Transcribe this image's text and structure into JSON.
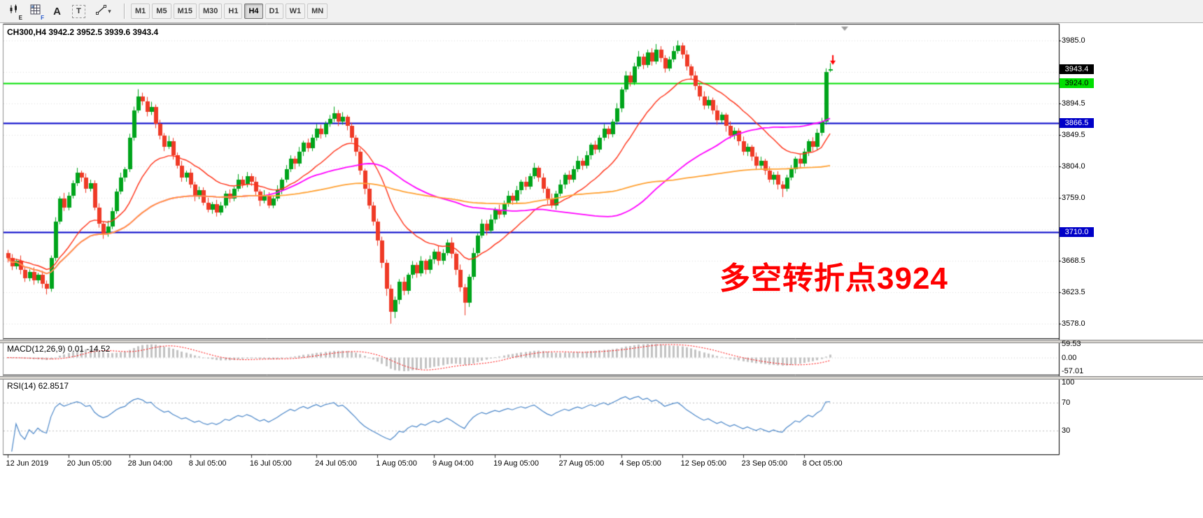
{
  "toolbar": {
    "icons": [
      {
        "name": "candlestick-chart-icon",
        "badge": "E"
      },
      {
        "name": "indicator-grid-icon",
        "badge": "F"
      },
      {
        "name": "text-tool-icon",
        "glyph": "A"
      },
      {
        "name": "textbox-tool-icon",
        "glyph": "T"
      },
      {
        "name": "draw-tool-icon",
        "caret": "▾"
      }
    ],
    "timeframes": [
      {
        "label": "M1",
        "active": false
      },
      {
        "label": "M5",
        "active": false
      },
      {
        "label": "M15",
        "active": false
      },
      {
        "label": "M30",
        "active": false
      },
      {
        "label": "H1",
        "active": false
      },
      {
        "label": "H4",
        "active": true
      },
      {
        "label": "D1",
        "active": false
      },
      {
        "label": "W1",
        "active": false
      },
      {
        "label": "MN",
        "active": false
      }
    ]
  },
  "chart": {
    "header": "CH300,H4  3942.2 3952.5 3939.6 3943.4",
    "annotation": {
      "text": "多空转折点3924",
      "color": "#FF0000"
    },
    "badges": [
      {
        "text": "3943.4",
        "price": 3943.4,
        "bg": "#000000",
        "fg": "#FFFFFF",
        "role": "current-price"
      },
      {
        "text": "3924.0",
        "price": 3924.0,
        "bg": "#00DF00",
        "fg": "#000000",
        "role": "hline-label"
      },
      {
        "text": "3866.5",
        "price": 3866.5,
        "bg": "#0000C8",
        "fg": "#FFFFFF",
        "role": "hline-label"
      },
      {
        "text": "3710.0",
        "price": 3710.0,
        "bg": "#0000C8",
        "fg": "#FFFFFF",
        "role": "hline-label"
      }
    ]
  },
  "chart_data": {
    "type": "candlestick",
    "symbol": "CH300",
    "timeframe": "H4",
    "current_bar": {
      "open": 3942.2,
      "high": 3952.5,
      "low": 3939.6,
      "close": 3943.4
    },
    "y_axis": {
      "min": 3578.0,
      "max": 3985.0,
      "ticks": [
        {
          "value": 3985.0,
          "label": "3985.0"
        },
        {
          "value": 3940.0,
          "label": ""
        },
        {
          "value": 3894.5,
          "label": "3894.5"
        },
        {
          "value": 3849.5,
          "label": "3849.5"
        },
        {
          "value": 3804.0,
          "label": "3804.0"
        },
        {
          "value": 3759.0,
          "label": "3759.0"
        },
        {
          "value": 3713.5,
          "label": ""
        },
        {
          "value": 3668.5,
          "label": "3668.5"
        },
        {
          "value": 3623.5,
          "label": "3623.5"
        },
        {
          "value": 3578.0,
          "label": "3578.0"
        }
      ]
    },
    "x_axis": {
      "labels": [
        {
          "bar": 0,
          "text": "12 Jun 2019"
        },
        {
          "bar": 14,
          "text": "20 Jun 05:00"
        },
        {
          "bar": 28,
          "text": "28 Jun 04:00"
        },
        {
          "bar": 42,
          "text": "8 Jul 05:00"
        },
        {
          "bar": 56,
          "text": "16 Jul 05:00"
        },
        {
          "bar": 71,
          "text": "24 Jul 05:00"
        },
        {
          "bar": 85,
          "text": "1 Aug 05:00"
        },
        {
          "bar": 98,
          "text": "9 Aug 04:00"
        },
        {
          "bar": 112,
          "text": "19 Aug 05:00"
        },
        {
          "bar": 127,
          "text": "27 Aug 05:00"
        },
        {
          "bar": 141,
          "text": "4 Sep 05:00"
        },
        {
          "bar": 155,
          "text": "12 Sep 05:00"
        },
        {
          "bar": 169,
          "text": "23 Sep 05:00"
        },
        {
          "bar": 183,
          "text": "8 Oct 05:00"
        }
      ]
    },
    "hlines": [
      {
        "price": 3924.0,
        "color": "#00DF00",
        "width": 2,
        "label": "3924.0"
      },
      {
        "price": 3866.5,
        "color": "#0000C8",
        "width": 2,
        "label": "3866.5"
      },
      {
        "price": 3710.0,
        "color": "#0000C8",
        "width": 2,
        "label": "3710.0"
      }
    ],
    "ma_lines": [
      {
        "period": 20,
        "type": "ema",
        "color": "#FF3016",
        "width": 1.4
      },
      {
        "period": 60,
        "type": "sma",
        "color": "#FF00FF",
        "width": 1.8
      },
      {
        "period": 120,
        "type": "sma",
        "color": "#FFA133",
        "width": 1.8
      }
    ],
    "colors": {
      "up": "#00A41B",
      "down": "#EF3A26",
      "macd_bar": "#C2C2C2",
      "macd_signal": "#FF0000",
      "rsi_line": "#4A86C8",
      "grid": "#DEDEDE"
    },
    "marker": {
      "bar": 189,
      "price": 3952,
      "color": "#FF0000",
      "type": "arrow-down"
    },
    "indicators": {
      "macd": {
        "label": "MACD(12,26,9) 0.01 -14.52",
        "fast": 12,
        "slow": 26,
        "signal": 9,
        "ticks": [
          {
            "value": 59.53,
            "label": "59.53"
          },
          {
            "value": 0,
            "label": "0.00"
          },
          {
            "value": -57.01,
            "label": "-57.01"
          }
        ]
      },
      "rsi": {
        "label": "RSI(14) 62.8517",
        "period": 14,
        "levels": [
          70,
          30
        ],
        "ticks": [
          {
            "value": 100,
            "label": "100"
          },
          {
            "value": 70,
            "label": "70"
          },
          {
            "value": 30,
            "label": "30"
          }
        ]
      }
    },
    "candles": [
      [
        3680,
        3684,
        3666,
        3672
      ],
      [
        3672,
        3678,
        3655,
        3660
      ],
      [
        3660,
        3671,
        3656,
        3668
      ],
      [
        3668,
        3676,
        3649,
        3655
      ],
      [
        3655,
        3660,
        3638,
        3643
      ],
      [
        3643,
        3656,
        3639,
        3652
      ],
      [
        3652,
        3659,
        3634,
        3640
      ],
      [
        3640,
        3651,
        3636,
        3648
      ],
      [
        3648,
        3654,
        3629,
        3635
      ],
      [
        3635,
        3640,
        3620,
        3628
      ],
      [
        3628,
        3676,
        3624,
        3672
      ],
      [
        3672,
        3731,
        3668,
        3725
      ],
      [
        3725,
        3761,
        3721,
        3758
      ],
      [
        3758,
        3766,
        3740,
        3745
      ],
      [
        3745,
        3767,
        3741,
        3762
      ],
      [
        3762,
        3784,
        3758,
        3780
      ],
      [
        3780,
        3802,
        3776,
        3795
      ],
      [
        3795,
        3798,
        3782,
        3788
      ],
      [
        3788,
        3794,
        3766,
        3772
      ],
      [
        3772,
        3785,
        3768,
        3780
      ],
      [
        3780,
        3784,
        3741,
        3745
      ],
      [
        3745,
        3751,
        3716,
        3722
      ],
      [
        3722,
        3725,
        3700,
        3708
      ],
      [
        3708,
        3726,
        3703,
        3718
      ],
      [
        3718,
        3745,
        3714,
        3740
      ],
      [
        3740,
        3772,
        3736,
        3768
      ],
      [
        3768,
        3795,
        3764,
        3788
      ],
      [
        3788,
        3803,
        3782,
        3800
      ],
      [
        3800,
        3851,
        3796,
        3845
      ],
      [
        3845,
        3890,
        3841,
        3885
      ],
      [
        3885,
        3915,
        3881,
        3905
      ],
      [
        3905,
        3910,
        3892,
        3898
      ],
      [
        3898,
        3904,
        3876,
        3882
      ],
      [
        3882,
        3897,
        3878,
        3890
      ],
      [
        3890,
        3893,
        3859,
        3865
      ],
      [
        3865,
        3871,
        3843,
        3848
      ],
      [
        3848,
        3852,
        3826,
        3832
      ],
      [
        3832,
        3848,
        3829,
        3840
      ],
      [
        3840,
        3845,
        3814,
        3820
      ],
      [
        3820,
        3824,
        3801,
        3805
      ],
      [
        3805,
        3812,
        3782,
        3788
      ],
      [
        3788,
        3798,
        3782,
        3795
      ],
      [
        3795,
        3801,
        3773,
        3778
      ],
      [
        3778,
        3782,
        3754,
        3762
      ],
      [
        3762,
        3775,
        3757,
        3770
      ],
      [
        3770,
        3774,
        3748,
        3752
      ],
      [
        3752,
        3759,
        3738,
        3742
      ],
      [
        3742,
        3753,
        3736,
        3750
      ],
      [
        3750,
        3756,
        3732,
        3738
      ],
      [
        3738,
        3753,
        3734,
        3748
      ],
      [
        3748,
        3769,
        3744,
        3765
      ],
      [
        3765,
        3771,
        3752,
        3758
      ],
      [
        3758,
        3775,
        3754,
        3772
      ],
      [
        3772,
        3793,
        3768,
        3785
      ],
      [
        3785,
        3790,
        3773,
        3778
      ],
      [
        3778,
        3796,
        3774,
        3790
      ],
      [
        3790,
        3794,
        3776,
        3782
      ],
      [
        3782,
        3789,
        3762,
        3768
      ],
      [
        3768,
        3771,
        3747,
        3755
      ],
      [
        3755,
        3770,
        3751,
        3762
      ],
      [
        3762,
        3767,
        3744,
        3748
      ],
      [
        3748,
        3762,
        3744,
        3758
      ],
      [
        3758,
        3777,
        3754,
        3770
      ],
      [
        3770,
        3788,
        3764,
        3785
      ],
      [
        3785,
        3806,
        3781,
        3800
      ],
      [
        3800,
        3820,
        3796,
        3815
      ],
      [
        3815,
        3819,
        3800,
        3808
      ],
      [
        3808,
        3832,
        3804,
        3825
      ],
      [
        3825,
        3841,
        3819,
        3838
      ],
      [
        3838,
        3844,
        3825,
        3830
      ],
      [
        3830,
        3850,
        3826,
        3845
      ],
      [
        3845,
        3865,
        3841,
        3858
      ],
      [
        3858,
        3864,
        3844,
        3850
      ],
      [
        3850,
        3869,
        3846,
        3865
      ],
      [
        3865,
        3878,
        3861,
        3872
      ],
      [
        3872,
        3890,
        3868,
        3880
      ],
      [
        3880,
        3885,
        3862,
        3868
      ],
      [
        3868,
        3882,
        3864,
        3875
      ],
      [
        3875,
        3878,
        3856,
        3862
      ],
      [
        3862,
        3867,
        3839,
        3845
      ],
      [
        3845,
        3849,
        3819,
        3825
      ],
      [
        3825,
        3830,
        3792,
        3798
      ],
      [
        3798,
        3801,
        3764,
        3772
      ],
      [
        3772,
        3780,
        3743,
        3748
      ],
      [
        3748,
        3753,
        3719,
        3725
      ],
      [
        3725,
        3729,
        3690,
        3698
      ],
      [
        3698,
        3703,
        3658,
        3665
      ],
      [
        3665,
        3670,
        3618,
        3628
      ],
      [
        3628,
        3634,
        3578,
        3595
      ],
      [
        3595,
        3617,
        3586,
        3612
      ],
      [
        3612,
        3642,
        3606,
        3638
      ],
      [
        3638,
        3645,
        3619,
        3625
      ],
      [
        3625,
        3651,
        3620,
        3648
      ],
      [
        3648,
        3668,
        3643,
        3662
      ],
      [
        3662,
        3666,
        3644,
        3650
      ],
      [
        3650,
        3675,
        3646,
        3668
      ],
      [
        3668,
        3671,
        3649,
        3655
      ],
      [
        3655,
        3676,
        3650,
        3670
      ],
      [
        3670,
        3685,
        3664,
        3682
      ],
      [
        3682,
        3690,
        3662,
        3668
      ],
      [
        3668,
        3685,
        3663,
        3680
      ],
      [
        3680,
        3699,
        3676,
        3695
      ],
      [
        3695,
        3702,
        3672,
        3678
      ],
      [
        3678,
        3681,
        3648,
        3655
      ],
      [
        3655,
        3663,
        3624,
        3630
      ],
      [
        3630,
        3635,
        3590,
        3608
      ],
      [
        3608,
        3649,
        3602,
        3645
      ],
      [
        3645,
        3687,
        3641,
        3680
      ],
      [
        3680,
        3708,
        3674,
        3705
      ],
      [
        3705,
        3728,
        3701,
        3722
      ],
      [
        3722,
        3727,
        3705,
        3712
      ],
      [
        3712,
        3735,
        3708,
        3728
      ],
      [
        3728,
        3745,
        3722,
        3742
      ],
      [
        3742,
        3749,
        3729,
        3735
      ],
      [
        3735,
        3755,
        3731,
        3750
      ],
      [
        3750,
        3769,
        3746,
        3762
      ],
      [
        3762,
        3766,
        3749,
        3755
      ],
      [
        3755,
        3776,
        3751,
        3770
      ],
      [
        3770,
        3785,
        3764,
        3782
      ],
      [
        3782,
        3789,
        3770,
        3775
      ],
      [
        3775,
        3794,
        3771,
        3790
      ],
      [
        3790,
        3809,
        3786,
        3802
      ],
      [
        3802,
        3805,
        3782,
        3788
      ],
      [
        3788,
        3794,
        3766,
        3772
      ],
      [
        3772,
        3775,
        3750,
        3758
      ],
      [
        3758,
        3765,
        3744,
        3748
      ],
      [
        3748,
        3769,
        3742,
        3765
      ],
      [
        3765,
        3785,
        3761,
        3778
      ],
      [
        3778,
        3795,
        3772,
        3792
      ],
      [
        3792,
        3798,
        3779,
        3785
      ],
      [
        3785,
        3805,
        3781,
        3800
      ],
      [
        3800,
        3819,
        3796,
        3812
      ],
      [
        3812,
        3816,
        3799,
        3805
      ],
      [
        3805,
        3826,
        3801,
        3820
      ],
      [
        3820,
        3838,
        3814,
        3835
      ],
      [
        3835,
        3841,
        3822,
        3828
      ],
      [
        3828,
        3849,
        3824,
        3845
      ],
      [
        3845,
        3865,
        3841,
        3858
      ],
      [
        3858,
        3862,
        3844,
        3850
      ],
      [
        3850,
        3872,
        3846,
        3868
      ],
      [
        3868,
        3895,
        3864,
        3888
      ],
      [
        3888,
        3918,
        3882,
        3915
      ],
      [
        3915,
        3941,
        3911,
        3935
      ],
      [
        3935,
        3940,
        3919,
        3925
      ],
      [
        3925,
        3953,
        3921,
        3948
      ],
      [
        3948,
        3970,
        3944,
        3962
      ],
      [
        3962,
        3966,
        3944,
        3950
      ],
      [
        3950,
        3972,
        3946,
        3968
      ],
      [
        3968,
        3974,
        3949,
        3955
      ],
      [
        3955,
        3980,
        3951,
        3972
      ],
      [
        3972,
        3977,
        3954,
        3960
      ],
      [
        3960,
        3964,
        3939,
        3945
      ],
      [
        3945,
        3962,
        3941,
        3958
      ],
      [
        3958,
        3977,
        3954,
        3970
      ],
      [
        3970,
        3985,
        3966,
        3978
      ],
      [
        3978,
        3982,
        3959,
        3965
      ],
      [
        3965,
        3971,
        3942,
        3948
      ],
      [
        3948,
        3951,
        3929,
        3935
      ],
      [
        3935,
        3941,
        3914,
        3920
      ],
      [
        3920,
        3924,
        3899,
        3905
      ],
      [
        3905,
        3912,
        3886,
        3892
      ],
      [
        3892,
        3905,
        3887,
        3900
      ],
      [
        3900,
        3903,
        3879,
        3885
      ],
      [
        3885,
        3892,
        3864,
        3870
      ],
      [
        3870,
        3882,
        3866,
        3878
      ],
      [
        3878,
        3881,
        3854,
        3862
      ],
      [
        3862,
        3869,
        3844,
        3848
      ],
      [
        3848,
        3860,
        3843,
        3855
      ],
      [
        3855,
        3859,
        3834,
        3840
      ],
      [
        3840,
        3847,
        3820,
        3825
      ],
      [
        3825,
        3837,
        3819,
        3832
      ],
      [
        3832,
        3835,
        3812,
        3818
      ],
      [
        3818,
        3824,
        3799,
        3805
      ],
      [
        3805,
        3818,
        3801,
        3812
      ],
      [
        3812,
        3815,
        3792,
        3798
      ],
      [
        3798,
        3804,
        3781,
        3785
      ],
      [
        3785,
        3796,
        3778,
        3792
      ],
      [
        3792,
        3797,
        3771,
        3778
      ],
      [
        3778,
        3783,
        3760,
        3772
      ],
      [
        3772,
        3792,
        3768,
        3788
      ],
      [
        3788,
        3806,
        3784,
        3800
      ],
      [
        3800,
        3818,
        3794,
        3815
      ],
      [
        3815,
        3821,
        3802,
        3808
      ],
      [
        3808,
        3830,
        3804,
        3825
      ],
      [
        3825,
        3843,
        3819,
        3840
      ],
      [
        3840,
        3846,
        3826,
        3832
      ],
      [
        3832,
        3858,
        3828,
        3852
      ],
      [
        3852,
        3874,
        3848,
        3868
      ],
      [
        3868,
        3945,
        3864,
        3940
      ],
      [
        3942.2,
        3952.5,
        3939.6,
        3943.4
      ]
    ]
  }
}
